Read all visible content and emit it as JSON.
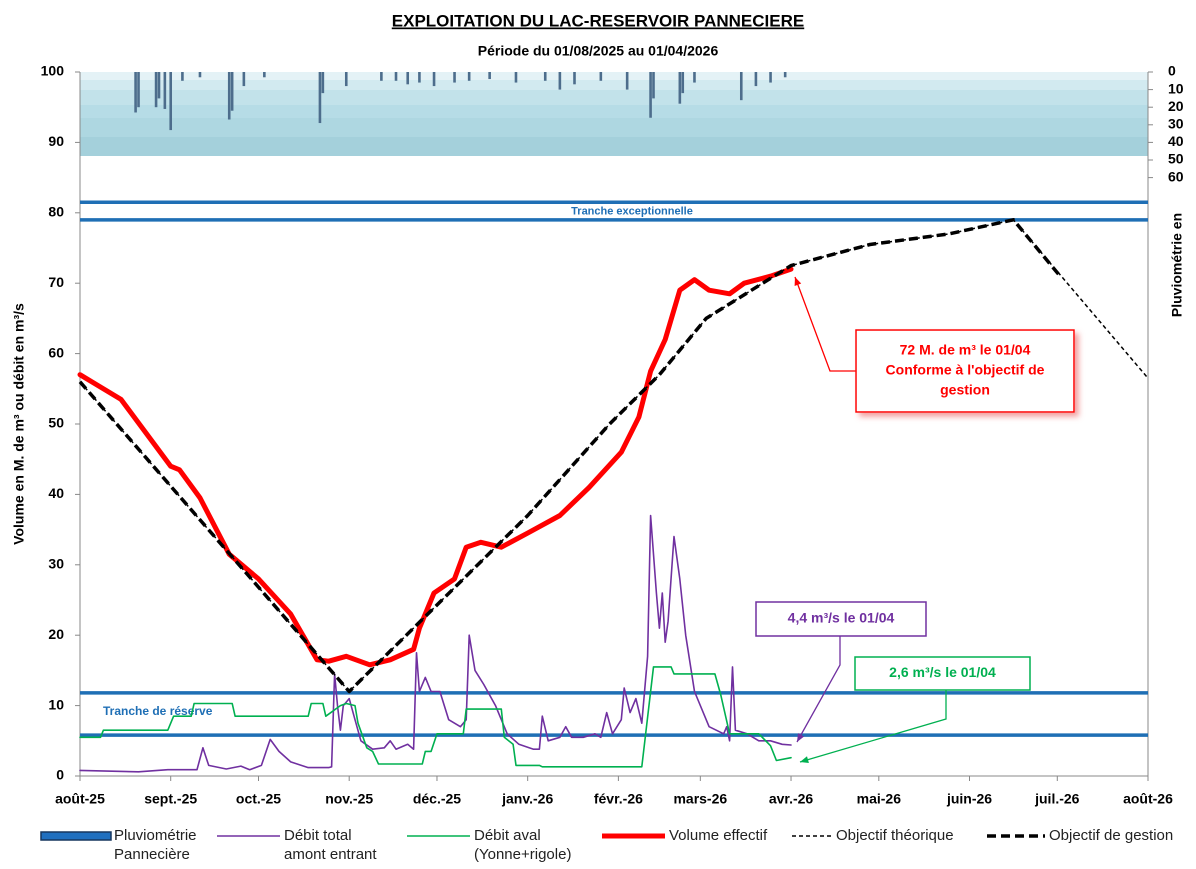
{
  "chart_data": {
    "type": "line",
    "title": "EXPLOITATION  DU  LAC-RESERVOIR  PANNECIERE",
    "subtitle": "Période du 01/08/2025 au 01/04/2026",
    "y_label": "Volume en M. de m³ ou débit en m³/s",
    "y2_label": "Pluviométrie en",
    "xlim": [
      0,
      365
    ],
    "xticks": [
      {
        "value": 0,
        "label": "août-25"
      },
      {
        "value": 31,
        "label": "sept.-25"
      },
      {
        "value": 61,
        "label": "oct.-25"
      },
      {
        "value": 92,
        "label": "nov.-25"
      },
      {
        "value": 122,
        "label": "déc.-25"
      },
      {
        "value": 153,
        "label": "janv.-26"
      },
      {
        "value": 184,
        "label": "févr.-26"
      },
      {
        "value": 212,
        "label": "mars-26"
      },
      {
        "value": 243,
        "label": "avr.-26"
      },
      {
        "value": 273,
        "label": "mai-26"
      },
      {
        "value": 304,
        "label": "juin-26"
      },
      {
        "value": 334,
        "label": "juil.-26"
      },
      {
        "value": 365,
        "label": "août-26"
      }
    ],
    "ylim": [
      0,
      100
    ],
    "yticks": [
      0,
      10,
      20,
      30,
      40,
      50,
      60,
      70,
      80,
      90,
      100
    ],
    "y2lim": [
      0,
      400
    ],
    "y2ticks": [
      0,
      10,
      20,
      30,
      40,
      50,
      60
    ],
    "y2_inverted": true,
    "reference_lines": [
      {
        "value": 81.5,
        "color": "#1f6fb5"
      },
      {
        "value": 79,
        "color": "#1f6fb5",
        "label": "Tranche exceptionnelle"
      },
      {
        "value": 11.8,
        "color": "#1f6fb5",
        "label": "Tranche de réserve"
      },
      {
        "value": 5.8,
        "color": "#1f6fb5"
      }
    ],
    "series": [
      {
        "name": "Pluviométrie Pannecière",
        "type": "bar",
        "axis": "y2",
        "color": "#4d6d8c",
        "x": [
          19,
          20,
          26,
          27,
          29,
          31,
          35,
          41,
          51,
          52,
          56,
          63,
          82,
          83,
          91,
          103,
          108,
          112,
          116,
          121,
          128,
          133,
          140,
          149,
          159,
          164,
          169,
          178,
          187,
          195,
          196,
          205,
          206,
          210,
          226,
          231,
          236,
          241
        ],
        "values": [
          23,
          20,
          20,
          15,
          21,
          33,
          5,
          3,
          27,
          22,
          8,
          3,
          29,
          12,
          8,
          5,
          5,
          7,
          6,
          8,
          6,
          5,
          4,
          6,
          5,
          10,
          7,
          5,
          10,
          26,
          15,
          18,
          12,
          6,
          16,
          8,
          6,
          3
        ]
      },
      {
        "name": "Débit total amont entrant",
        "type": "line",
        "color": "#7030a0",
        "line_width": 1.6,
        "x": [
          0,
          20,
          30,
          40,
          42,
          44,
          50,
          55,
          58,
          62,
          65,
          68,
          72,
          78,
          85,
          86,
          87,
          88,
          89,
          90,
          92,
          94,
          96,
          100,
          104,
          106,
          108,
          112,
          114,
          115,
          116,
          118,
          120,
          123,
          126,
          130,
          132,
          133,
          135,
          138,
          142,
          146,
          150,
          155,
          157,
          158,
          160,
          164,
          166,
          168,
          172,
          176,
          178,
          180,
          182,
          185,
          186,
          188,
          190,
          192,
          194,
          195,
          197,
          198,
          199,
          200,
          201,
          203,
          205,
          207,
          210,
          215,
          220,
          221,
          222,
          223,
          224,
          228,
          232,
          236,
          240,
          243
        ],
        "values": [
          0.8,
          0.6,
          0.9,
          0.9,
          4,
          1.5,
          1,
          1.4,
          0.9,
          1.5,
          5.2,
          3.5,
          2,
          1.2,
          1.2,
          1.3,
          14.5,
          10,
          6.5,
          10,
          11,
          8,
          5,
          3.8,
          4,
          5,
          3.8,
          4.5,
          3.8,
          17.5,
          12,
          14,
          12,
          12,
          8,
          7,
          8,
          20,
          15,
          13,
          10,
          6,
          4.5,
          3.8,
          3.8,
          8.5,
          5,
          5.5,
          7,
          5.5,
          5.5,
          6,
          5.5,
          9,
          6,
          8,
          12.5,
          9,
          11,
          7.5,
          17,
          37,
          26,
          21,
          26,
          19,
          22,
          34,
          28,
          20,
          12,
          7,
          6,
          7,
          5,
          15.5,
          6.5,
          6,
          5,
          5,
          4.5,
          4.4
        ]
      },
      {
        "name": "Débit aval (Yonne+rigole)",
        "type": "line",
        "color": "#00b050",
        "line_width": 1.6,
        "x": [
          0,
          7,
          8,
          30,
          32,
          38,
          39,
          52,
          53,
          78,
          79,
          83,
          84,
          89,
          91,
          94,
          95,
          98,
          100,
          102,
          117,
          118,
          120,
          122,
          131,
          132,
          144,
          145,
          148,
          149,
          157,
          158,
          192,
          196,
          202,
          203,
          217,
          219,
          222,
          232,
          236,
          238,
          243
        ],
        "values": [
          5.5,
          5.5,
          6.5,
          6.5,
          8.5,
          8.5,
          10.3,
          10.3,
          8.5,
          8.5,
          10.3,
          10.3,
          8.5,
          10,
          10.3,
          10,
          7.5,
          4,
          3.5,
          1.7,
          1.7,
          3.5,
          3.5,
          6,
          6,
          9.5,
          9.5,
          5.5,
          4.5,
          1.5,
          1.5,
          1.3,
          1.3,
          15.5,
          15.5,
          14.5,
          14.5,
          11.5,
          6,
          6,
          4.3,
          2.2,
          2.6
        ]
      },
      {
        "name": "Volume effectif",
        "type": "line",
        "color": "#ff0000",
        "line_width": 5,
        "x": [
          0,
          14,
          31,
          34,
          41,
          51,
          61,
          72,
          81,
          85,
          91,
          99,
          106,
          114,
          116,
          121,
          128,
          132,
          137,
          144,
          153,
          164,
          174,
          185,
          191,
          195,
          200,
          205,
          210,
          215,
          222,
          227,
          236,
          243
        ],
        "values": [
          57,
          53.5,
          44,
          43.5,
          39.5,
          31.5,
          28,
          23,
          16.5,
          16.3,
          17,
          15.8,
          16.5,
          18,
          21,
          26,
          28,
          32.5,
          33.2,
          32.5,
          34.5,
          37,
          41,
          46,
          51,
          57.5,
          62,
          69,
          70.5,
          69,
          68.5,
          70,
          71,
          72
        ]
      },
      {
        "name": "Objectif théorique",
        "type": "line",
        "color": "#000000",
        "line_width": 1.5,
        "dash": "4 3",
        "x": [
          0,
          92,
          153,
          181,
          198,
          214,
          243,
          270,
          297,
          319,
          365
        ],
        "values": [
          56,
          12,
          37,
          50,
          57,
          65,
          72.5,
          75.5,
          77,
          79,
          56.5
        ]
      },
      {
        "name": "Objectif de gestion",
        "type": "line",
        "color": "#000000",
        "line_width": 3.5,
        "dash": "9 5",
        "x": [
          0,
          92,
          153,
          181,
          198,
          214,
          243,
          270,
          297,
          319,
          335
        ],
        "values": [
          56,
          12,
          37,
          50,
          57,
          65,
          72.5,
          75.5,
          77,
          79,
          71
        ]
      }
    ],
    "annotations": [
      {
        "lines": [
          "72 M. de m³ le 01/04",
          "Conforme à l'objectif de",
          "gestion"
        ],
        "color": "#ff0000"
      },
      {
        "lines": [
          "4,4 m³/s le 01/04"
        ],
        "color": "#7030a0"
      },
      {
        "lines": [
          "2,6 m³/s le 01/04"
        ],
        "color": "#00b050"
      }
    ]
  }
}
